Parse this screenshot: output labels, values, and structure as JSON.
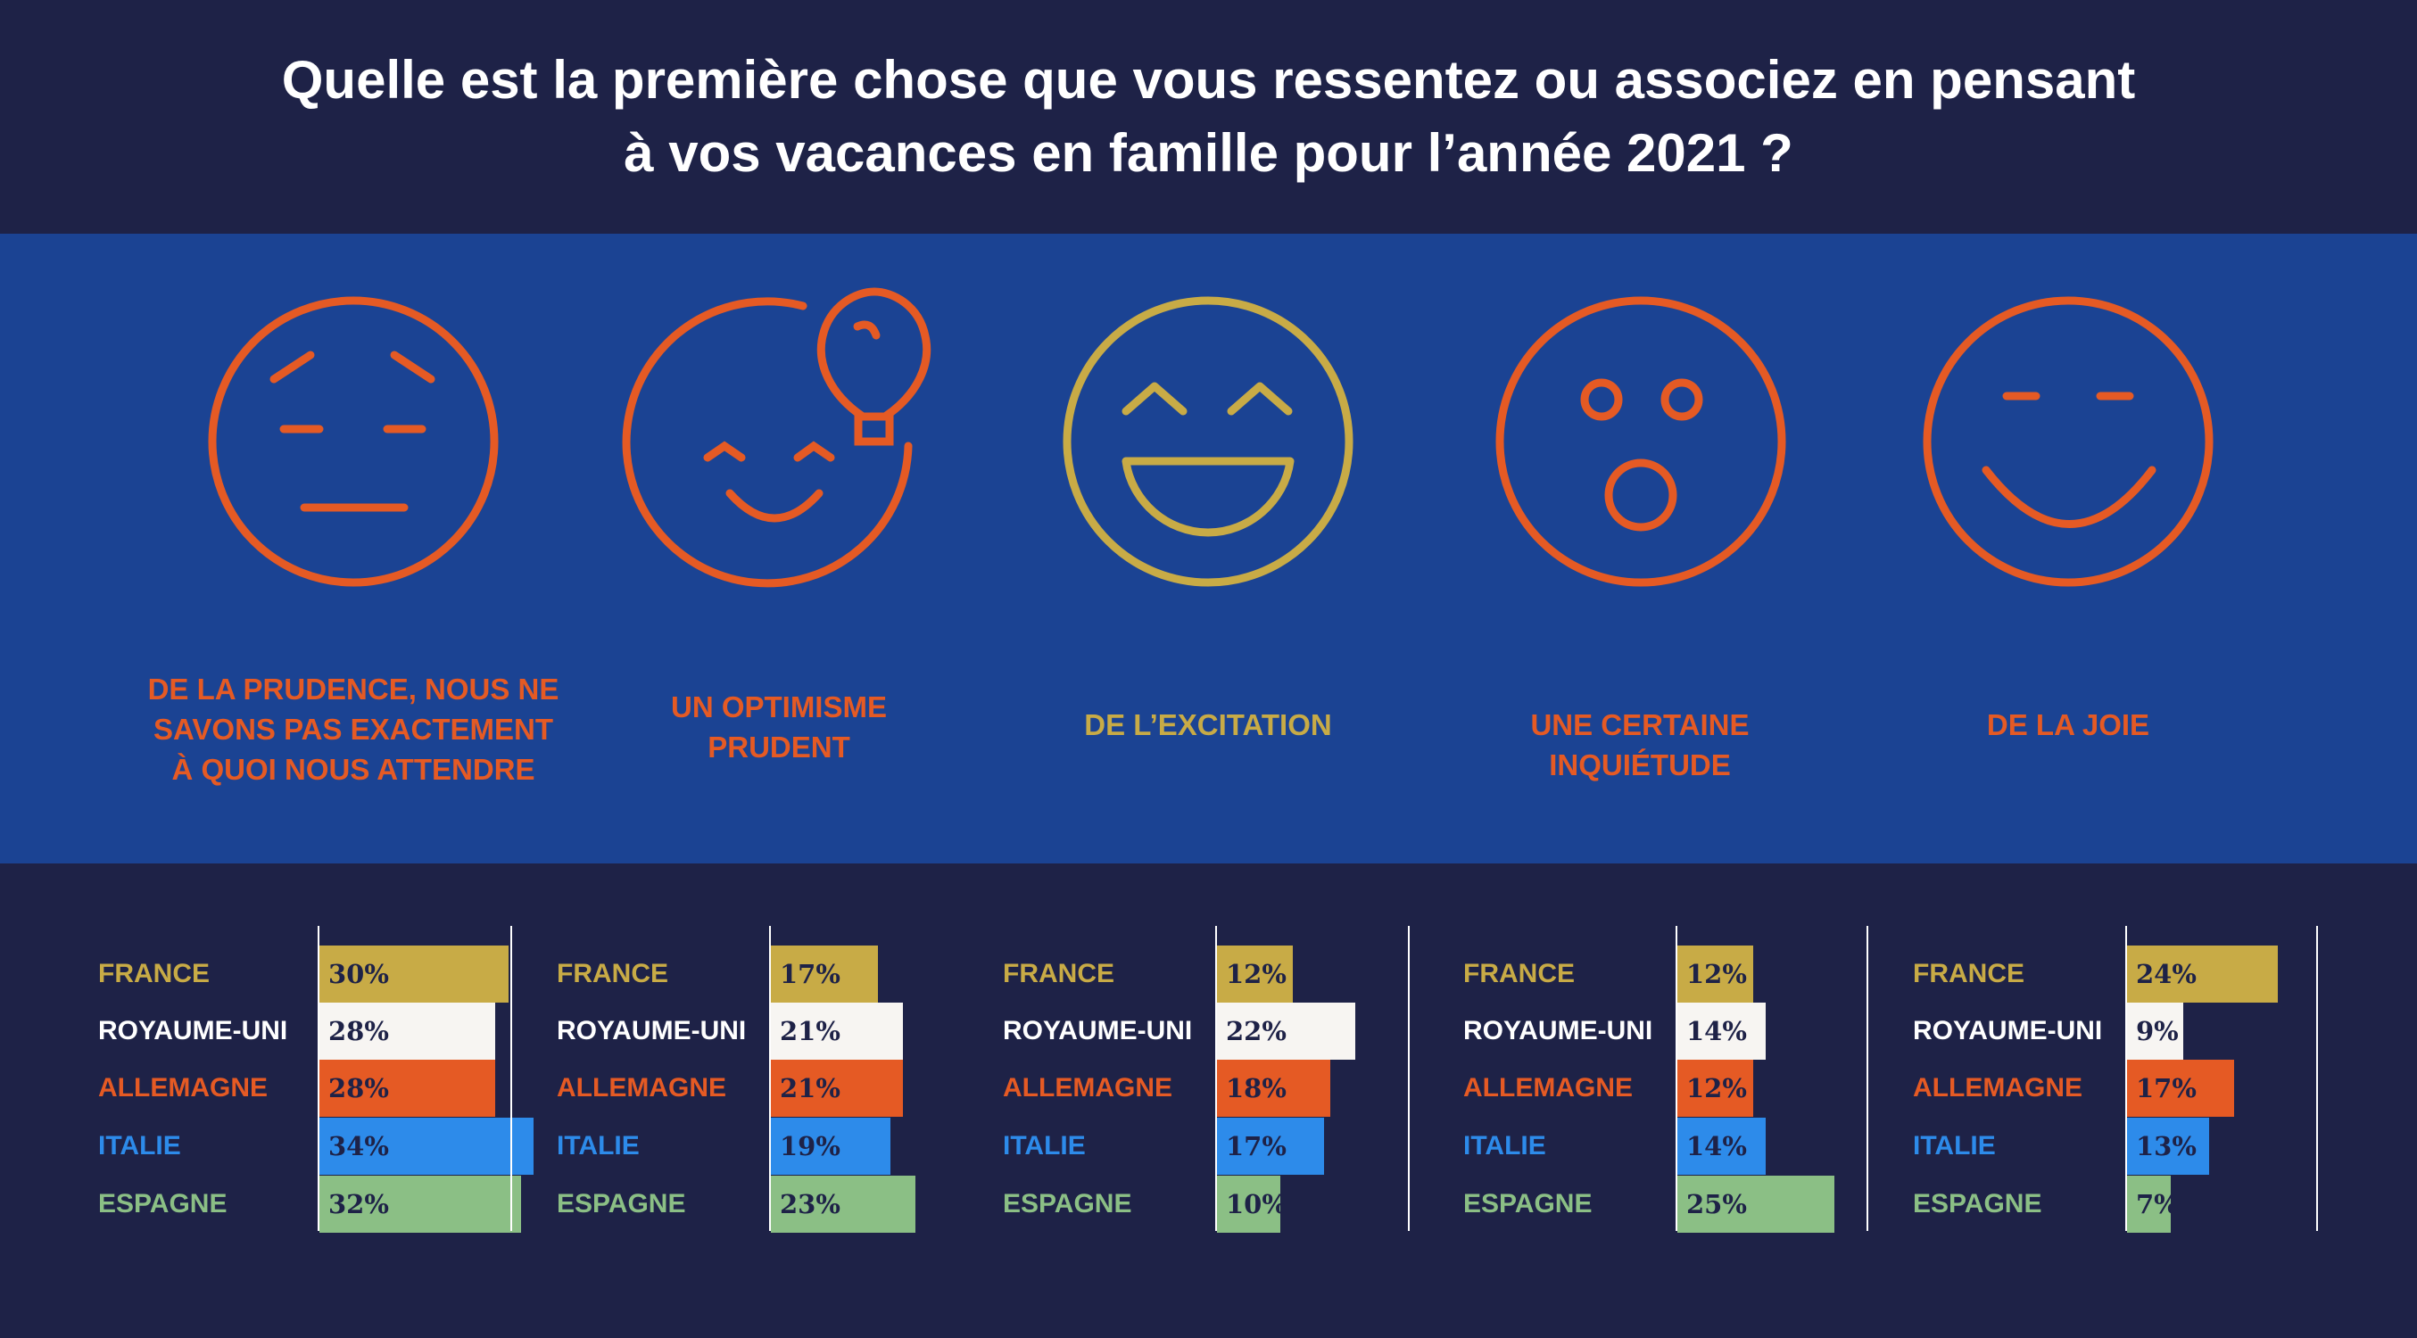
{
  "title": {
    "line1": "Quelle est la première chose que vous ressentez ou associez en pensant",
    "line2": "à vos vacances en famille pour l’année 2021 ?"
  },
  "colors": {
    "header_bg": "#1e2247",
    "band_bg": "#1b4393",
    "orange": "#e55a24",
    "gold": "#c8ab46",
    "france": "#c8ab46",
    "royaume_uni": "#f7f5f2",
    "allemagne": "#e55a24",
    "italie": "#2d8bea",
    "espagne": "#8bbf85"
  },
  "faces": [
    {
      "icon": "cautious-face-icon",
      "label": "DE LA PRUDENCE, NOUS NE\nSAVONS PAS EXACTEMENT\nÀ QUOI NOUS ATTENDRE",
      "color": "#e55a24"
    },
    {
      "icon": "optimistic-face-lightbulb-icon",
      "label": "UN OPTIMISME\nPRUDENT",
      "color": "#e55a24"
    },
    {
      "icon": "excited-face-icon",
      "label": "DE L’EXCITATION",
      "color": "#c8ab46"
    },
    {
      "icon": "surprised-face-icon",
      "label": "UNE CERTAINE\nINQUIÉTUDE",
      "color": "#e55a24"
    },
    {
      "icon": "joyful-face-icon",
      "label": "DE LA JOIE",
      "color": "#e55a24"
    }
  ],
  "chart_data": {
    "type": "bar",
    "orientation": "horizontal",
    "title": "Quelle est la première chose que vous ressentez ou associez en pensant à vos vacances en famille pour l’année 2021 ?",
    "categories": [
      "FRANCE",
      "ROYAUME-UNI",
      "ALLEMAGNE",
      "ITALIE",
      "ESPAGNE"
    ],
    "value_suffix": "%",
    "xlim": [
      0,
      35
    ],
    "groups": [
      {
        "name": "DE LA PRUDENCE, NOUS NE SAVONS PAS EXACTEMENT À QUOI NOUS ATTENDRE",
        "values": [
          30,
          28,
          28,
          34,
          32
        ]
      },
      {
        "name": "UN OPTIMISME PRUDENT",
        "values": [
          17,
          21,
          21,
          19,
          23
        ]
      },
      {
        "name": "DE L’EXCITATION",
        "values": [
          12,
          22,
          18,
          17,
          10
        ]
      },
      {
        "name": "UNE CERTAINE INQUIÉTUDE",
        "values": [
          12,
          14,
          12,
          14,
          25
        ]
      },
      {
        "name": "DE LA JOIE",
        "values": [
          24,
          9,
          17,
          13,
          7
        ]
      }
    ],
    "category_colors": [
      "#c8ab46",
      "#f7f5f2",
      "#e55a24",
      "#2d8bea",
      "#8bbf85"
    ],
    "label_colors": [
      "#c8ab46",
      "#ffffff",
      "#e55a24",
      "#2d8bea",
      "#8bbf85"
    ]
  }
}
